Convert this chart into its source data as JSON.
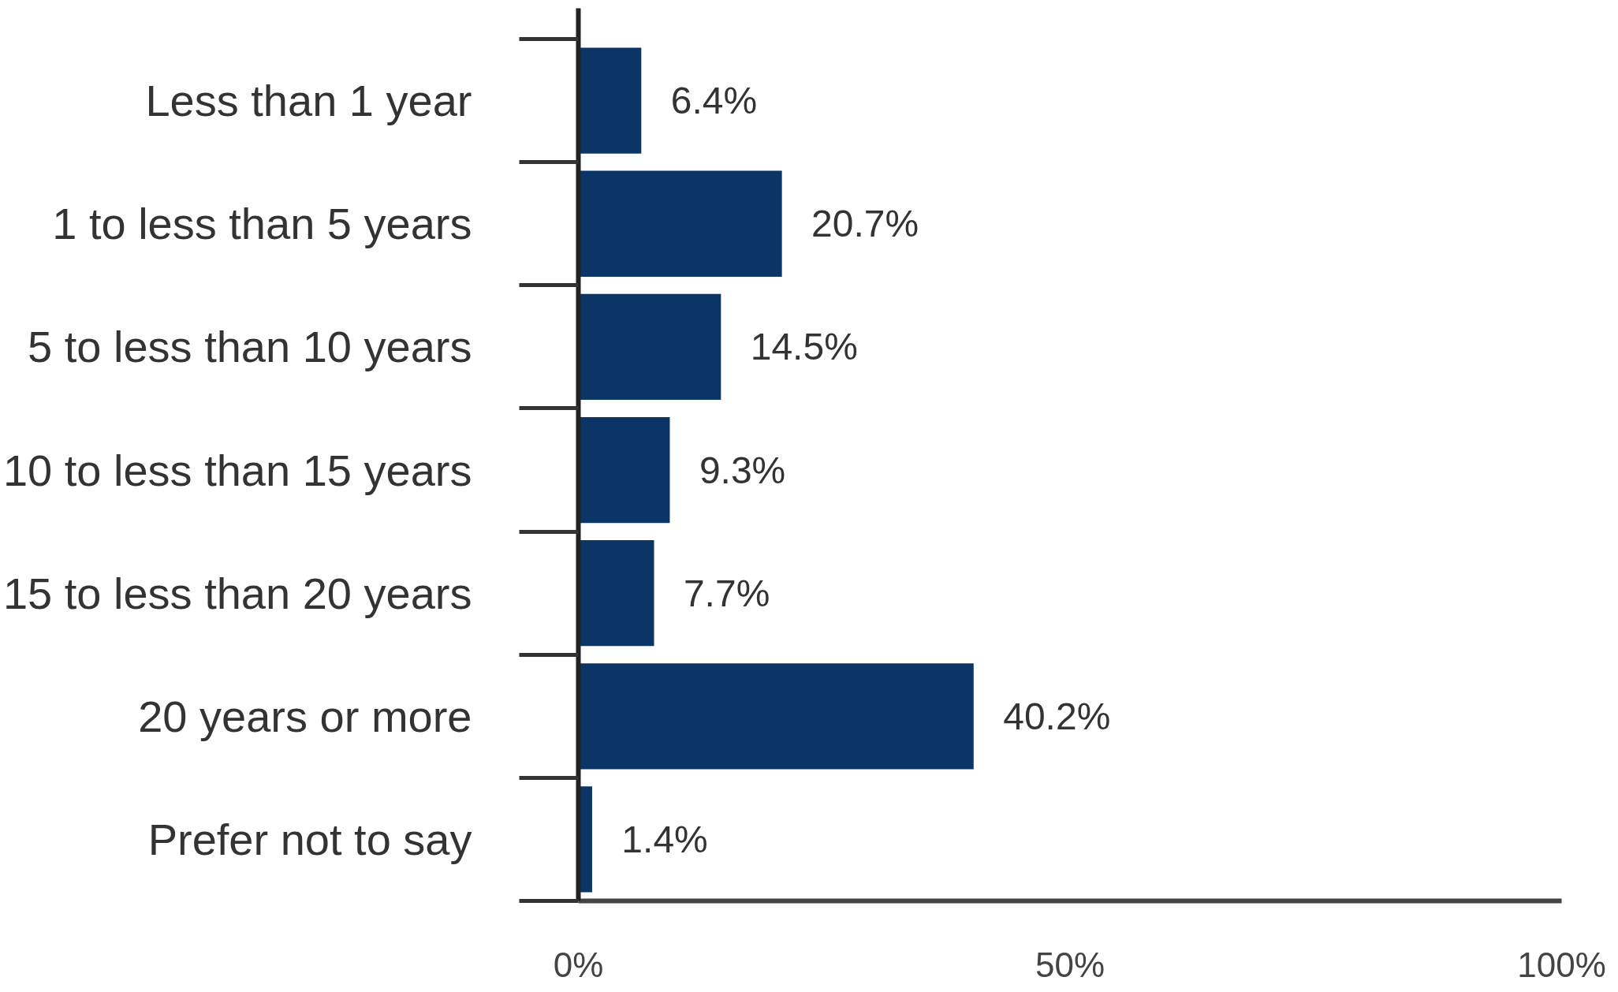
{
  "chart_data": {
    "type": "bar",
    "orientation": "horizontal",
    "categories": [
      "Less than 1 year",
      "1 to less than 5 years",
      "5 to less than 10 years",
      "10 to less than 15 years",
      "15 to less than 20 years",
      "20 years or more",
      "Prefer not to say"
    ],
    "values": [
      6.4,
      20.7,
      14.5,
      9.3,
      7.7,
      40.2,
      1.4
    ],
    "value_labels": [
      "6.4%",
      "20.7%",
      "14.5%",
      "9.3%",
      "7.7%",
      "40.2%",
      "1.4%"
    ],
    "color": "#0b3467",
    "xlim": [
      0,
      100
    ],
    "xticks": [
      {
        "value": 0,
        "label": "0%"
      },
      {
        "value": 50,
        "label": "50%"
      },
      {
        "value": 100,
        "label": "100%"
      }
    ],
    "grid": false
  }
}
